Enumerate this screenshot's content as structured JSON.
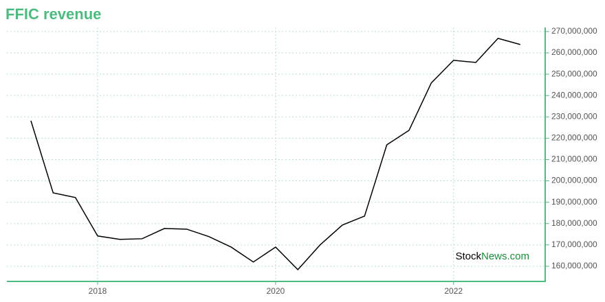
{
  "chart_data": {
    "type": "line",
    "title": "FFIC revenue",
    "x": [
      2017.25,
      2017.5,
      2017.75,
      2018,
      2018.25,
      2018.5,
      2018.75,
      2019,
      2019.25,
      2019.5,
      2019.75,
      2020,
      2020.25,
      2020.5,
      2020.75,
      2021,
      2021.25,
      2021.5,
      2021.75,
      2022,
      2022.25,
      2022.5,
      2022.75
    ],
    "values": [
      228200000,
      194400000,
      192200000,
      174200000,
      172600000,
      172900000,
      177700000,
      177400000,
      173900000,
      169000000,
      162000000,
      169000000,
      158400000,
      170000000,
      179300000,
      183500000,
      216900000,
      223700000,
      245900000,
      256500000,
      255500000,
      266800000,
      263900000
    ],
    "color": "#000000",
    "xlim": [
      2016.98,
      2023.03
    ],
    "xticks": [
      2018,
      2020,
      2022
    ],
    "ylim": [
      152900000,
      271900000
    ],
    "yticks": [
      {
        "value": 160000000,
        "label": "160,000,000"
      },
      {
        "value": 170000000,
        "label": "170,000,000"
      },
      {
        "value": 180000000,
        "label": "180,000,000"
      },
      {
        "value": 190000000,
        "label": "190,000,000"
      },
      {
        "value": 200000000,
        "label": "200,000,000"
      },
      {
        "value": 210000000,
        "label": "210,000,000"
      },
      {
        "value": 220000000,
        "label": "220,000,000"
      },
      {
        "value": 230000000,
        "label": "230,000,000"
      },
      {
        "value": 240000000,
        "label": "240,000,000"
      },
      {
        "value": 250000000,
        "label": "250,000,000"
      },
      {
        "value": 260000000,
        "label": "260,000,000"
      },
      {
        "value": 270000000,
        "label": "270,000,000"
      }
    ],
    "grid": true,
    "watermark": {
      "first": "Stock",
      "second": "News.com"
    }
  }
}
